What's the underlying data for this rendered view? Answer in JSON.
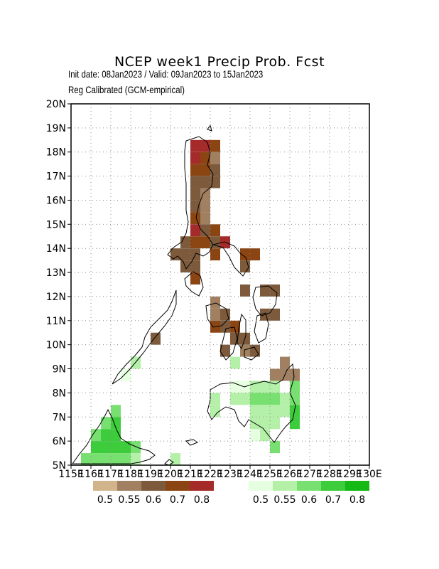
{
  "title": "NCEP week1 Precip Prob. Fcst",
  "subtitle_dates": "Init date: 08Jan2023 / Valid: 09Jan2023 to 15Jan2023",
  "subtitle_method": "Reg Calibrated (GCM-empirical)",
  "map": {
    "lon_range": [
      115,
      130
    ],
    "lat_range": [
      5,
      20
    ],
    "grid": true,
    "lat_tick_labels": [
      "5N",
      "6N",
      "7N",
      "8N",
      "9N",
      "10N",
      "11N",
      "12N",
      "13N",
      "14N",
      "15N",
      "16N",
      "17N",
      "18N",
      "19N",
      "20N"
    ],
    "lon_tick_labels": [
      "115E",
      "116E",
      "117E",
      "118E",
      "119E",
      "120E",
      "121E",
      "122E",
      "123E",
      "124E",
      "125E",
      "126E",
      "127E",
      "128E",
      "129E",
      "130E"
    ]
  },
  "legend": {
    "dry": {
      "colors": [
        "#d2b48c",
        "#a08060",
        "#7d5a3c",
        "#8b4513",
        "#a52a2a"
      ],
      "labels": [
        "0.5",
        "0.55",
        "0.6",
        "0.7",
        "0.8"
      ]
    },
    "wet": {
      "colors": [
        "#e6ffe0",
        "#b4f0a8",
        "#78e070",
        "#3ccc3c",
        "#14b914"
      ],
      "labels": [
        "0.5",
        "0.55",
        "0.6",
        "0.7",
        "0.8"
      ]
    }
  },
  "chart_data": {
    "type": "heatmap",
    "cell_size_deg": 0.5,
    "category_colors": {
      "dry_0.55": "#a08060",
      "dry_0.6": "#7d5a3c",
      "dry_0.7": "#8b4513",
      "dry_0.8": "#a52a2a",
      "wet_0.5": "#e6ffe0",
      "wet_0.55": "#b4f0a8",
      "wet_0.6": "#78e070",
      "wet_0.7": "#3ccc3c"
    },
    "cells": [
      {
        "lon": 121.0,
        "lat": 18.0,
        "cat": "dry_0.8"
      },
      {
        "lon": 121.5,
        "lat": 18.0,
        "cat": "dry_0.8"
      },
      {
        "lon": 122.0,
        "lat": 18.0,
        "cat": "dry_0.7"
      },
      {
        "lon": 121.0,
        "lat": 17.5,
        "cat": "dry_0.8"
      },
      {
        "lon": 121.5,
        "lat": 17.5,
        "cat": "dry_0.7"
      },
      {
        "lon": 122.0,
        "lat": 17.5,
        "cat": "dry_0.55"
      },
      {
        "lon": 121.0,
        "lat": 17.0,
        "cat": "dry_0.7"
      },
      {
        "lon": 121.5,
        "lat": 17.0,
        "cat": "dry_0.7"
      },
      {
        "lon": 122.0,
        "lat": 17.0,
        "cat": "dry_0.6"
      },
      {
        "lon": 121.0,
        "lat": 16.5,
        "cat": "dry_0.6"
      },
      {
        "lon": 121.5,
        "lat": 16.5,
        "cat": "dry_0.6"
      },
      {
        "lon": 122.0,
        "lat": 16.5,
        "cat": "dry_0.6"
      },
      {
        "lon": 121.0,
        "lat": 16.0,
        "cat": "dry_0.6"
      },
      {
        "lon": 121.5,
        "lat": 16.0,
        "cat": "dry_0.55"
      },
      {
        "lon": 121.0,
        "lat": 15.5,
        "cat": "dry_0.6"
      },
      {
        "lon": 121.5,
        "lat": 15.5,
        "cat": "dry_0.55"
      },
      {
        "lon": 121.0,
        "lat": 15.0,
        "cat": "dry_0.7"
      },
      {
        "lon": 121.5,
        "lat": 15.0,
        "cat": "dry_0.55"
      },
      {
        "lon": 121.0,
        "lat": 14.5,
        "cat": "dry_0.8"
      },
      {
        "lon": 121.5,
        "lat": 14.5,
        "cat": "dry_0.6"
      },
      {
        "lon": 122.0,
        "lat": 14.5,
        "cat": "dry_0.7"
      },
      {
        "lon": 120.5,
        "lat": 14.0,
        "cat": "dry_0.6"
      },
      {
        "lon": 121.0,
        "lat": 14.0,
        "cat": "dry_0.7"
      },
      {
        "lon": 121.5,
        "lat": 14.0,
        "cat": "dry_0.7"
      },
      {
        "lon": 122.0,
        "lat": 14.0,
        "cat": "dry_0.6"
      },
      {
        "lon": 122.5,
        "lat": 14.0,
        "cat": "dry_0.8"
      },
      {
        "lon": 120.0,
        "lat": 13.5,
        "cat": "dry_0.6"
      },
      {
        "lon": 120.5,
        "lat": 13.5,
        "cat": "dry_0.6"
      },
      {
        "lon": 121.0,
        "lat": 13.5,
        "cat": "dry_0.6"
      },
      {
        "lon": 122.0,
        "lat": 13.5,
        "cat": "dry_0.7"
      },
      {
        "lon": 123.5,
        "lat": 13.5,
        "cat": "dry_0.7"
      },
      {
        "lon": 124.0,
        "lat": 13.5,
        "cat": "dry_0.7"
      },
      {
        "lon": 120.5,
        "lat": 13.0,
        "cat": "dry_0.6"
      },
      {
        "lon": 121.0,
        "lat": 13.0,
        "cat": "dry_0.6"
      },
      {
        "lon": 123.5,
        "lat": 13.0,
        "cat": "dry_0.6"
      },
      {
        "lon": 121.0,
        "lat": 12.5,
        "cat": "dry_0.7"
      },
      {
        "lon": 123.5,
        "lat": 12.0,
        "cat": "dry_0.6"
      },
      {
        "lon": 124.5,
        "lat": 12.0,
        "cat": "dry_0.6"
      },
      {
        "lon": 125.0,
        "lat": 12.0,
        "cat": "dry_0.6"
      },
      {
        "lon": 122.0,
        "lat": 11.5,
        "cat": "dry_0.55"
      },
      {
        "lon": 122.0,
        "lat": 11.0,
        "cat": "dry_0.55"
      },
      {
        "lon": 122.5,
        "lat": 11.0,
        "cat": "dry_0.6"
      },
      {
        "lon": 124.5,
        "lat": 11.0,
        "cat": "dry_0.6"
      },
      {
        "lon": 125.0,
        "lat": 11.0,
        "cat": "dry_0.6"
      },
      {
        "lon": 122.0,
        "lat": 10.5,
        "cat": "dry_0.7"
      },
      {
        "lon": 122.5,
        "lat": 10.5,
        "cat": "dry_0.6"
      },
      {
        "lon": 123.0,
        "lat": 10.5,
        "cat": "dry_0.7"
      },
      {
        "lon": 119.0,
        "lat": 10.0,
        "cat": "dry_0.6"
      },
      {
        "lon": 123.0,
        "lat": 10.0,
        "cat": "dry_0.6"
      },
      {
        "lon": 123.5,
        "lat": 10.0,
        "cat": "dry_0.6"
      },
      {
        "lon": 122.5,
        "lat": 9.5,
        "cat": "dry_0.6"
      },
      {
        "lon": 123.5,
        "lat": 9.5,
        "cat": "dry_0.55"
      },
      {
        "lon": 124.0,
        "lat": 9.5,
        "cat": "dry_0.6"
      },
      {
        "lon": 125.5,
        "lat": 9.0,
        "cat": "dry_0.55"
      },
      {
        "lon": 125.0,
        "lat": 8.5,
        "cat": "dry_0.55"
      },
      {
        "lon": 125.5,
        "lat": 8.5,
        "cat": "dry_0.55"
      },
      {
        "lon": 126.0,
        "lat": 8.5,
        "cat": "dry_0.55"
      },
      {
        "lon": 118.0,
        "lat": 9.0,
        "cat": "wet_0.55"
      },
      {
        "lon": 117.5,
        "lat": 8.5,
        "cat": "wet_0.5"
      },
      {
        "lon": 123.0,
        "lat": 9.0,
        "cat": "wet_0.55"
      },
      {
        "lon": 123.0,
        "lat": 8.0,
        "cat": "wet_0.5"
      },
      {
        "lon": 123.5,
        "lat": 8.0,
        "cat": "wet_0.5"
      },
      {
        "lon": 124.0,
        "lat": 8.0,
        "cat": "wet_0.55"
      },
      {
        "lon": 124.5,
        "lat": 8.0,
        "cat": "wet_0.55"
      },
      {
        "lon": 125.0,
        "lat": 8.0,
        "cat": "wet_0.55"
      },
      {
        "lon": 126.0,
        "lat": 8.0,
        "cat": "wet_0.6"
      },
      {
        "lon": 122.0,
        "lat": 7.5,
        "cat": "wet_0.55"
      },
      {
        "lon": 123.0,
        "lat": 7.5,
        "cat": "wet_0.55"
      },
      {
        "lon": 123.5,
        "lat": 7.5,
        "cat": "wet_0.55"
      },
      {
        "lon": 124.0,
        "lat": 7.5,
        "cat": "wet_0.6"
      },
      {
        "lon": 124.5,
        "lat": 7.5,
        "cat": "wet_0.6"
      },
      {
        "lon": 125.0,
        "lat": 7.5,
        "cat": "wet_0.6"
      },
      {
        "lon": 125.5,
        "lat": 7.5,
        "cat": "wet_0.55"
      },
      {
        "lon": 126.0,
        "lat": 7.5,
        "cat": "wet_0.6"
      },
      {
        "lon": 122.0,
        "lat": 7.0,
        "cat": "wet_0.55"
      },
      {
        "lon": 124.0,
        "lat": 7.0,
        "cat": "wet_0.55"
      },
      {
        "lon": 124.5,
        "lat": 7.0,
        "cat": "wet_0.55"
      },
      {
        "lon": 125.0,
        "lat": 7.0,
        "cat": "wet_0.55"
      },
      {
        "lon": 125.5,
        "lat": 7.0,
        "cat": "wet_0.55"
      },
      {
        "lon": 126.0,
        "lat": 7.0,
        "cat": "wet_0.7"
      },
      {
        "lon": 124.0,
        "lat": 6.5,
        "cat": "wet_0.55"
      },
      {
        "lon": 124.5,
        "lat": 6.5,
        "cat": "wet_0.55"
      },
      {
        "lon": 125.0,
        "lat": 6.5,
        "cat": "wet_0.55"
      },
      {
        "lon": 126.0,
        "lat": 6.5,
        "cat": "wet_0.7"
      },
      {
        "lon": 124.0,
        "lat": 6.0,
        "cat": "wet_0.5"
      },
      {
        "lon": 124.5,
        "lat": 6.0,
        "cat": "wet_0.55"
      },
      {
        "lon": 125.0,
        "lat": 5.5,
        "cat": "wet_0.6"
      },
      {
        "lon": 117.0,
        "lat": 7.0,
        "cat": "wet_0.6"
      },
      {
        "lon": 116.5,
        "lat": 6.5,
        "cat": "wet_0.6"
      },
      {
        "lon": 117.0,
        "lat": 6.5,
        "cat": "wet_0.7"
      },
      {
        "lon": 116.0,
        "lat": 6.0,
        "cat": "wet_0.6"
      },
      {
        "lon": 116.5,
        "lat": 6.0,
        "cat": "wet_0.7"
      },
      {
        "lon": 117.0,
        "lat": 6.0,
        "cat": "wet_0.7"
      },
      {
        "lon": 116.0,
        "lat": 5.5,
        "cat": "wet_0.7"
      },
      {
        "lon": 116.5,
        "lat": 5.5,
        "cat": "wet_0.7"
      },
      {
        "lon": 117.0,
        "lat": 5.5,
        "cat": "wet_0.7"
      },
      {
        "lon": 117.5,
        "lat": 5.5,
        "cat": "wet_0.7"
      },
      {
        "lon": 118.0,
        "lat": 5.5,
        "cat": "wet_0.6"
      },
      {
        "lon": 115.5,
        "lat": 5.0,
        "cat": "wet_0.6"
      },
      {
        "lon": 116.0,
        "lat": 5.0,
        "cat": "wet_0.6"
      },
      {
        "lon": 116.5,
        "lat": 5.0,
        "cat": "wet_0.6"
      },
      {
        "lon": 117.0,
        "lat": 5.0,
        "cat": "wet_0.6"
      },
      {
        "lon": 117.5,
        "lat": 5.0,
        "cat": "wet_0.6"
      },
      {
        "lon": 118.0,
        "lat": 5.0,
        "cat": "wet_0.55"
      },
      {
        "lon": 120.0,
        "lat": 5.0,
        "cat": "wet_0.55"
      }
    ]
  }
}
